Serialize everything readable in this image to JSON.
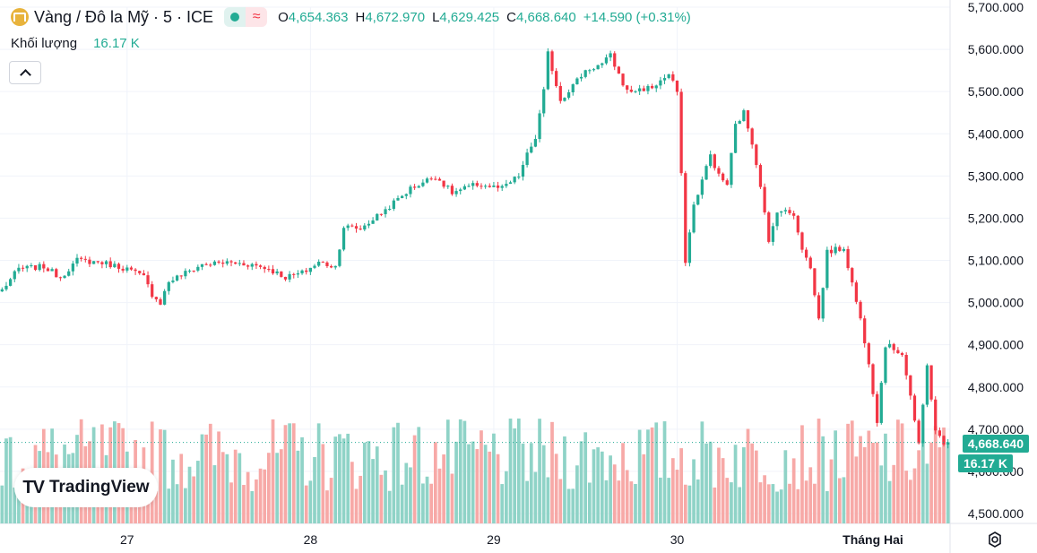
{
  "header": {
    "title": "Vàng / Đô la Mỹ · 5 · ICE",
    "ohlc": [
      {
        "key": "O",
        "value": "4,654.363"
      },
      {
        "key": "H",
        "value": "4,672.970"
      },
      {
        "key": "L",
        "value": "4,629.425"
      },
      {
        "key": "C",
        "value": "4,668.640"
      }
    ],
    "change": "+14.590 (+0.31%)",
    "market_icon_label": "≈"
  },
  "volume_legend": {
    "label": "Khối lượng",
    "value": "16.17 K"
  },
  "branding": {
    "name": "TradingView",
    "logo_text": "TV"
  },
  "price_tag": "4,668.640",
  "volume_tag": "16.17 K",
  "colors": {
    "up": "#22ab94",
    "down": "#f23645",
    "up_vol": "#8fd3c7",
    "down_vol": "#f7a9a7",
    "grid": "#f0f3fa"
  },
  "chart_data": {
    "type": "candlestick",
    "title": "Vàng / Đô la Mỹ · 5 · ICE",
    "ylabel": "",
    "ylim": [
      4500,
      5700
    ],
    "y_ticks": [
      "5,700.000",
      "5,600.000",
      "5,500.000",
      "5,400.000",
      "5,300.000",
      "5,200.000",
      "5,100.000",
      "5,000.000",
      "4,900.000",
      "4,800.000",
      "4,700.000",
      "4,600.000",
      "4,500.000"
    ],
    "y_tick_values": [
      5700,
      5600,
      5500,
      5400,
      5300,
      5200,
      5100,
      5000,
      4900,
      4800,
      4700,
      4600,
      4500
    ],
    "x_ticks": [
      "27",
      "28",
      "29",
      "30",
      "Tháng Hai"
    ],
    "x_tick_positions": [
      30,
      74,
      118,
      162,
      209
    ],
    "candle_count": 228,
    "price_path": [
      [
        0,
        5030
      ],
      [
        4,
        5080
      ],
      [
        10,
        5085
      ],
      [
        14,
        5060
      ],
      [
        18,
        5100
      ],
      [
        24,
        5095
      ],
      [
        30,
        5080
      ],
      [
        34,
        5060
      ],
      [
        36,
        5020
      ],
      [
        38,
        5000
      ],
      [
        40,
        5050
      ],
      [
        44,
        5070
      ],
      [
        48,
        5090
      ],
      [
        54,
        5095
      ],
      [
        60,
        5090
      ],
      [
        64,
        5080
      ],
      [
        68,
        5060
      ],
      [
        72,
        5070
      ],
      [
        76,
        5095
      ],
      [
        80,
        5085
      ],
      [
        82,
        5180
      ],
      [
        86,
        5175
      ],
      [
        92,
        5220
      ],
      [
        98,
        5270
      ],
      [
        104,
        5300
      ],
      [
        108,
        5260
      ],
      [
        114,
        5280
      ],
      [
        120,
        5270
      ],
      [
        124,
        5300
      ],
      [
        126,
        5350
      ],
      [
        128,
        5390
      ],
      [
        130,
        5500
      ],
      [
        131,
        5590
      ],
      [
        134,
        5480
      ],
      [
        140,
        5550
      ],
      [
        144,
        5565
      ],
      [
        146,
        5585
      ],
      [
        148,
        5540
      ],
      [
        150,
        5500
      ],
      [
        156,
        5510
      ],
      [
        160,
        5540
      ],
      [
        162,
        5500
      ],
      [
        163,
        5300
      ],
      [
        164,
        5100
      ],
      [
        166,
        5230
      ],
      [
        170,
        5350
      ],
      [
        172,
        5300
      ],
      [
        174,
        5280
      ],
      [
        176,
        5420
      ],
      [
        178,
        5450
      ],
      [
        180,
        5380
      ],
      [
        182,
        5280
      ],
      [
        184,
        5140
      ],
      [
        186,
        5220
      ],
      [
        190,
        5210
      ],
      [
        192,
        5130
      ],
      [
        194,
        5080
      ],
      [
        196,
        4960
      ],
      [
        198,
        5120
      ],
      [
        202,
        5130
      ],
      [
        206,
        4960
      ],
      [
        208,
        4860
      ],
      [
        210,
        4720
      ],
      [
        212,
        4900
      ],
      [
        216,
        4880
      ],
      [
        218,
        4780
      ],
      [
        220,
        4660
      ],
      [
        222,
        4850
      ],
      [
        224,
        4700
      ],
      [
        226,
        4660
      ],
      [
        227,
        4668.64
      ]
    ],
    "last_close": 4668.64,
    "volume_ylim": [
      0,
      1100
    ],
    "volume_range": [
      300,
      1000
    ]
  }
}
